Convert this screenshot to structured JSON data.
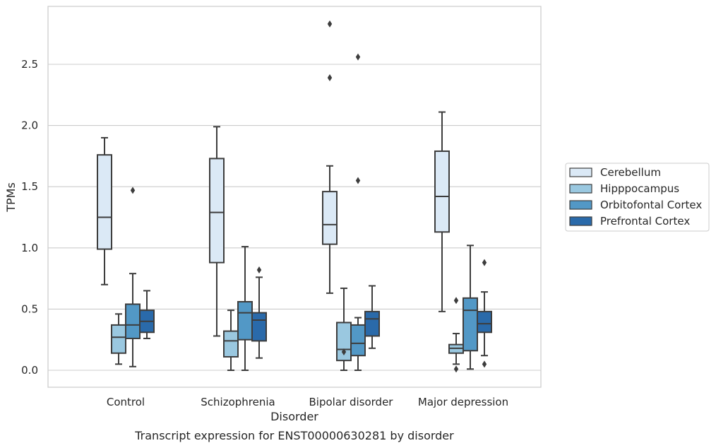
{
  "chart_data": {
    "type": "boxplot",
    "title": "",
    "caption": "Transcript expression for ENST00000630281 by disorder",
    "xlabel": "Disorder",
    "ylabel": "TPMs",
    "ylim": [
      -0.14,
      2.98
    ],
    "yticks": [
      0.0,
      0.5,
      1.0,
      1.5,
      2.0,
      2.5
    ],
    "ytick_labels": [
      "0.0",
      "0.5",
      "1.0",
      "1.5",
      "2.0",
      "2.5"
    ],
    "grid": "horizontal",
    "legend_position": "right",
    "categories": [
      "Control",
      "Schizophrenia",
      "Bipolar disorder",
      "Major depression"
    ],
    "series": [
      {
        "name": "Cerebellum",
        "color": "#dbe9f6",
        "boxes": [
          {
            "whislo": 0.7,
            "q1": 0.99,
            "med": 1.25,
            "q3": 1.76,
            "whishi": 1.9,
            "fliers": []
          },
          {
            "whislo": 0.28,
            "q1": 0.88,
            "med": 1.29,
            "q3": 1.73,
            "whishi": 1.99,
            "fliers": []
          },
          {
            "whislo": 0.63,
            "q1": 1.03,
            "med": 1.19,
            "q3": 1.46,
            "whishi": 1.67,
            "fliers": [
              2.39,
              2.83
            ]
          },
          {
            "whislo": 0.48,
            "q1": 1.13,
            "med": 1.42,
            "q3": 1.79,
            "whishi": 2.11,
            "fliers": []
          }
        ]
      },
      {
        "name": "Hipppocampus",
        "color": "#9ac8e0",
        "boxes": [
          {
            "whislo": 0.05,
            "q1": 0.14,
            "med": 0.27,
            "q3": 0.37,
            "whishi": 0.46,
            "fliers": []
          },
          {
            "whislo": 0.0,
            "q1": 0.11,
            "med": 0.24,
            "q3": 0.32,
            "whishi": 0.49,
            "fliers": []
          },
          {
            "whislo": 0.0,
            "q1": 0.08,
            "med": 0.17,
            "q3": 0.39,
            "whishi": 0.67,
            "fliers": [
              0.15
            ]
          },
          {
            "whislo": 0.05,
            "q1": 0.14,
            "med": 0.18,
            "q3": 0.21,
            "whishi": 0.3,
            "fliers": [
              0.01,
              0.57
            ]
          }
        ]
      },
      {
        "name": "Orbitofontal Cortex",
        "color": "#5298c6",
        "boxes": [
          {
            "whislo": 0.03,
            "q1": 0.26,
            "med": 0.37,
            "q3": 0.54,
            "whishi": 0.79,
            "fliers": [
              1.47
            ]
          },
          {
            "whislo": 0.0,
            "q1": 0.25,
            "med": 0.47,
            "q3": 0.56,
            "whishi": 1.01,
            "fliers": []
          },
          {
            "whislo": 0.0,
            "q1": 0.12,
            "med": 0.22,
            "q3": 0.37,
            "whishi": 0.43,
            "fliers": [
              1.55,
              2.56
            ]
          },
          {
            "whislo": 0.01,
            "q1": 0.16,
            "med": 0.49,
            "q3": 0.59,
            "whishi": 1.02,
            "fliers": []
          }
        ]
      },
      {
        "name": "Prefrontal Cortex",
        "color": "#2a6aaa",
        "boxes": [
          {
            "whislo": 0.26,
            "q1": 0.31,
            "med": 0.4,
            "q3": 0.49,
            "whishi": 0.65,
            "fliers": []
          },
          {
            "whislo": 0.1,
            "q1": 0.24,
            "med": 0.41,
            "q3": 0.47,
            "whishi": 0.76,
            "fliers": [
              0.82
            ]
          },
          {
            "whislo": 0.18,
            "q1": 0.28,
            "med": 0.42,
            "q3": 0.48,
            "whishi": 0.69,
            "fliers": []
          },
          {
            "whislo": 0.12,
            "q1": 0.31,
            "med": 0.38,
            "q3": 0.48,
            "whishi": 0.64,
            "fliers": [
              0.05,
              0.88
            ]
          }
        ]
      }
    ]
  }
}
